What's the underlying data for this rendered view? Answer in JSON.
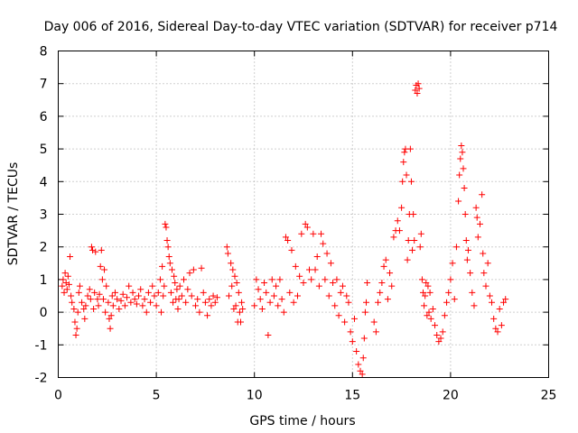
{
  "chart_data": {
    "type": "scatter",
    "title": "Day 006 of 2016, Sidereal Day-to-day VTEC variation (SDTVAR) for receiver p714",
    "xlabel": "GPS time / hours",
    "ylabel": "SDTVAR / TECUs",
    "xlim": [
      0,
      25
    ],
    "ylim": [
      -2,
      8
    ],
    "xticks": [
      0,
      5,
      10,
      15,
      20,
      25
    ],
    "yticks": [
      -2,
      -1,
      0,
      1,
      2,
      3,
      4,
      5,
      6,
      7,
      8
    ],
    "xtick_labels": [
      "0",
      "5",
      "10",
      "15",
      "20",
      "25"
    ],
    "ytick_labels": [
      "-2",
      "-1",
      "0",
      "1",
      "2",
      "3",
      "4",
      "5",
      "6",
      "7",
      "8"
    ],
    "grid": true,
    "marker": "plus",
    "color": "#ff0000",
    "series": [
      {
        "name": "SDTVAR",
        "points": [
          [
            0.2,
            0.8
          ],
          [
            0.25,
            1.0
          ],
          [
            0.3,
            0.6
          ],
          [
            0.35,
            1.2
          ],
          [
            0.4,
            0.9
          ],
          [
            0.45,
            0.7
          ],
          [
            0.5,
            1.1
          ],
          [
            0.55,
            0.85
          ],
          [
            0.6,
            1.7
          ],
          [
            0.65,
            0.5
          ],
          [
            0.7,
            0.3
          ],
          [
            0.8,
            0.1
          ],
          [
            0.85,
            -0.3
          ],
          [
            0.9,
            -0.7
          ],
          [
            0.95,
            -0.5
          ],
          [
            1.0,
            0.0
          ],
          [
            1.05,
            0.6
          ],
          [
            1.1,
            0.8
          ],
          [
            1.2,
            0.3
          ],
          [
            1.3,
            0.1
          ],
          [
            1.35,
            -0.2
          ],
          [
            1.4,
            0.2
          ],
          [
            1.5,
            0.5
          ],
          [
            1.6,
            0.7
          ],
          [
            1.65,
            0.4
          ],
          [
            1.7,
            2.0
          ],
          [
            1.75,
            1.9
          ],
          [
            1.8,
            0.1
          ],
          [
            1.85,
            0.6
          ],
          [
            1.9,
            1.85
          ],
          [
            2.0,
            0.4
          ],
          [
            2.05,
            0.2
          ],
          [
            2.1,
            0.55
          ],
          [
            2.15,
            1.4
          ],
          [
            2.2,
            1.9
          ],
          [
            2.25,
            1.0
          ],
          [
            2.3,
            0.4
          ],
          [
            2.35,
            1.3
          ],
          [
            2.4,
            0.0
          ],
          [
            2.45,
            0.8
          ],
          [
            2.55,
            0.3
          ],
          [
            2.6,
            -0.2
          ],
          [
            2.65,
            -0.5
          ],
          [
            2.7,
            -0.1
          ],
          [
            2.75,
            0.5
          ],
          [
            2.8,
            0.2
          ],
          [
            2.9,
            0.6
          ],
          [
            3.0,
            0.4
          ],
          [
            3.1,
            0.1
          ],
          [
            3.2,
            0.35
          ],
          [
            3.3,
            0.55
          ],
          [
            3.4,
            0.2
          ],
          [
            3.5,
            0.45
          ],
          [
            3.6,
            0.8
          ],
          [
            3.7,
            0.3
          ],
          [
            3.8,
            0.6
          ],
          [
            3.9,
            0.4
          ],
          [
            4.0,
            0.25
          ],
          [
            4.1,
            0.5
          ],
          [
            4.2,
            0.7
          ],
          [
            4.3,
            0.2
          ],
          [
            4.4,
            0.4
          ],
          [
            4.5,
            0.0
          ],
          [
            4.6,
            0.6
          ],
          [
            4.7,
            0.3
          ],
          [
            4.8,
            0.8
          ],
          [
            4.9,
            0.5
          ],
          [
            5.0,
            0.2
          ],
          [
            5.1,
            0.6
          ],
          [
            5.2,
            1.0
          ],
          [
            5.25,
            0.0
          ],
          [
            5.3,
            1.4
          ],
          [
            5.35,
            0.5
          ],
          [
            5.4,
            0.8
          ],
          [
            5.45,
            2.7
          ],
          [
            5.5,
            2.6
          ],
          [
            5.55,
            2.2
          ],
          [
            5.6,
            2.0
          ],
          [
            5.65,
            1.7
          ],
          [
            5.7,
            1.5
          ],
          [
            5.75,
            0.6
          ],
          [
            5.8,
            1.3
          ],
          [
            5.85,
            0.3
          ],
          [
            5.9,
            1.1
          ],
          [
            5.95,
            0.9
          ],
          [
            6.0,
            0.4
          ],
          [
            6.05,
            0.7
          ],
          [
            6.1,
            0.1
          ],
          [
            6.15,
            0.4
          ],
          [
            6.2,
            0.8
          ],
          [
            6.3,
            0.5
          ],
          [
            6.4,
            1.0
          ],
          [
            6.5,
            0.3
          ],
          [
            6.6,
            0.7
          ],
          [
            6.7,
            1.2
          ],
          [
            6.8,
            0.5
          ],
          [
            6.9,
            1.3
          ],
          [
            7.0,
            0.2
          ],
          [
            7.1,
            0.4
          ],
          [
            7.2,
            0.0
          ],
          [
            7.3,
            1.35
          ],
          [
            7.4,
            0.6
          ],
          [
            7.5,
            0.3
          ],
          [
            7.6,
            -0.1
          ],
          [
            7.7,
            0.4
          ],
          [
            7.8,
            0.2
          ],
          [
            7.9,
            0.5
          ],
          [
            8.0,
            0.3
          ],
          [
            8.1,
            0.45
          ],
          [
            8.6,
            2.0
          ],
          [
            8.65,
            1.8
          ],
          [
            8.7,
            0.5
          ],
          [
            8.8,
            1.5
          ],
          [
            8.85,
            0.8
          ],
          [
            8.9,
            1.3
          ],
          [
            8.95,
            0.1
          ],
          [
            9.0,
            1.1
          ],
          [
            9.05,
            0.2
          ],
          [
            9.1,
            0.9
          ],
          [
            9.15,
            -0.3
          ],
          [
            9.2,
            0.6
          ],
          [
            9.25,
            0.0
          ],
          [
            9.3,
            -0.3
          ],
          [
            9.35,
            0.3
          ],
          [
            9.4,
            0.1
          ],
          [
            10.0,
            0.2
          ],
          [
            10.1,
            1.0
          ],
          [
            10.2,
            0.7
          ],
          [
            10.3,
            0.4
          ],
          [
            10.4,
            0.1
          ],
          [
            10.5,
            0.9
          ],
          [
            10.6,
            0.6
          ],
          [
            10.7,
            -0.7
          ],
          [
            10.8,
            0.3
          ],
          [
            10.9,
            1.0
          ],
          [
            11.0,
            0.5
          ],
          [
            11.1,
            0.8
          ],
          [
            11.2,
            0.2
          ],
          [
            11.3,
            1.0
          ],
          [
            11.4,
            0.4
          ],
          [
            11.5,
            0.0
          ],
          [
            11.6,
            2.3
          ],
          [
            11.7,
            2.2
          ],
          [
            11.8,
            0.6
          ],
          [
            11.9,
            1.9
          ],
          [
            12.0,
            0.3
          ],
          [
            12.1,
            1.4
          ],
          [
            12.2,
            0.5
          ],
          [
            12.3,
            1.1
          ],
          [
            12.4,
            2.4
          ],
          [
            12.5,
            0.9
          ],
          [
            12.6,
            2.7
          ],
          [
            12.7,
            2.6
          ],
          [
            12.8,
            1.3
          ],
          [
            12.9,
            1.0
          ],
          [
            13.0,
            2.4
          ],
          [
            13.1,
            1.3
          ],
          [
            13.2,
            1.7
          ],
          [
            13.3,
            0.8
          ],
          [
            13.4,
            2.4
          ],
          [
            13.5,
            2.1
          ],
          [
            13.6,
            1.0
          ],
          [
            13.7,
            1.8
          ],
          [
            13.8,
            0.5
          ],
          [
            13.9,
            1.5
          ],
          [
            14.0,
            0.9
          ],
          [
            14.1,
            0.2
          ],
          [
            14.2,
            1.0
          ],
          [
            14.3,
            -0.1
          ],
          [
            14.4,
            0.6
          ],
          [
            14.5,
            0.8
          ],
          [
            14.6,
            -0.3
          ],
          [
            14.7,
            0.5
          ],
          [
            14.8,
            0.3
          ],
          [
            14.9,
            -0.6
          ],
          [
            15.0,
            -0.9
          ],
          [
            15.1,
            -0.2
          ],
          [
            15.2,
            -1.2
          ],
          [
            15.3,
            -1.6
          ],
          [
            15.4,
            -1.8
          ],
          [
            15.5,
            -1.9
          ],
          [
            15.55,
            -1.4
          ],
          [
            15.6,
            -0.8
          ],
          [
            15.65,
            0.0
          ],
          [
            15.7,
            0.3
          ],
          [
            15.75,
            0.9
          ],
          [
            16.1,
            -0.3
          ],
          [
            16.2,
            -0.6
          ],
          [
            16.3,
            0.3
          ],
          [
            16.4,
            0.6
          ],
          [
            16.5,
            0.9
          ],
          [
            16.6,
            1.4
          ],
          [
            16.7,
            1.6
          ],
          [
            16.8,
            0.4
          ],
          [
            16.9,
            1.2
          ],
          [
            17.0,
            0.8
          ],
          [
            17.1,
            2.3
          ],
          [
            17.2,
            2.5
          ],
          [
            17.3,
            2.8
          ],
          [
            17.4,
            2.5
          ],
          [
            17.5,
            3.2
          ],
          [
            17.55,
            4.0
          ],
          [
            17.6,
            4.6
          ],
          [
            17.65,
            4.9
          ],
          [
            17.7,
            5.0
          ],
          [
            17.75,
            4.2
          ],
          [
            17.8,
            1.6
          ],
          [
            17.85,
            2.2
          ],
          [
            17.9,
            3.0
          ],
          [
            17.95,
            5.0
          ],
          [
            18.0,
            4.0
          ],
          [
            18.05,
            1.9
          ],
          [
            18.1,
            3.0
          ],
          [
            18.15,
            2.2
          ],
          [
            18.2,
            6.8
          ],
          [
            18.25,
            6.95
          ],
          [
            18.3,
            6.7
          ],
          [
            18.35,
            7.0
          ],
          [
            18.4,
            6.85
          ],
          [
            18.45,
            2.0
          ],
          [
            18.5,
            2.4
          ],
          [
            18.55,
            1.0
          ],
          [
            18.6,
            0.6
          ],
          [
            18.65,
            0.2
          ],
          [
            18.7,
            0.5
          ],
          [
            18.75,
            0.9
          ],
          [
            18.8,
            -0.1
          ],
          [
            18.85,
            0.8
          ],
          [
            18.9,
            0.0
          ],
          [
            18.95,
            0.6
          ],
          [
            19.0,
            -0.2
          ],
          [
            19.1,
            0.1
          ],
          [
            19.2,
            -0.4
          ],
          [
            19.3,
            -0.7
          ],
          [
            19.4,
            -0.9
          ],
          [
            19.5,
            -0.8
          ],
          [
            19.6,
            -0.6
          ],
          [
            19.7,
            -0.1
          ],
          [
            19.8,
            0.3
          ],
          [
            19.9,
            0.6
          ],
          [
            20.0,
            1.0
          ],
          [
            20.1,
            1.5
          ],
          [
            20.2,
            0.4
          ],
          [
            20.3,
            2.0
          ],
          [
            20.4,
            3.4
          ],
          [
            20.45,
            4.2
          ],
          [
            20.5,
            4.7
          ],
          [
            20.55,
            5.1
          ],
          [
            20.6,
            4.9
          ],
          [
            20.65,
            4.4
          ],
          [
            20.7,
            3.8
          ],
          [
            20.75,
            3.0
          ],
          [
            20.8,
            2.2
          ],
          [
            20.85,
            1.6
          ],
          [
            20.9,
            1.9
          ],
          [
            21.0,
            1.2
          ],
          [
            21.1,
            0.6
          ],
          [
            21.2,
            0.2
          ],
          [
            21.3,
            3.2
          ],
          [
            21.35,
            2.9
          ],
          [
            21.4,
            2.3
          ],
          [
            21.5,
            2.7
          ],
          [
            21.6,
            3.6
          ],
          [
            21.65,
            1.8
          ],
          [
            21.7,
            1.2
          ],
          [
            21.8,
            0.8
          ],
          [
            21.9,
            1.5
          ],
          [
            22.0,
            0.5
          ],
          [
            22.1,
            0.3
          ],
          [
            22.2,
            -0.2
          ],
          [
            22.3,
            -0.5
          ],
          [
            22.4,
            -0.6
          ],
          [
            22.5,
            0.1
          ],
          [
            22.6,
            -0.4
          ],
          [
            22.7,
            0.3
          ],
          [
            22.8,
            0.4
          ]
        ]
      }
    ]
  }
}
